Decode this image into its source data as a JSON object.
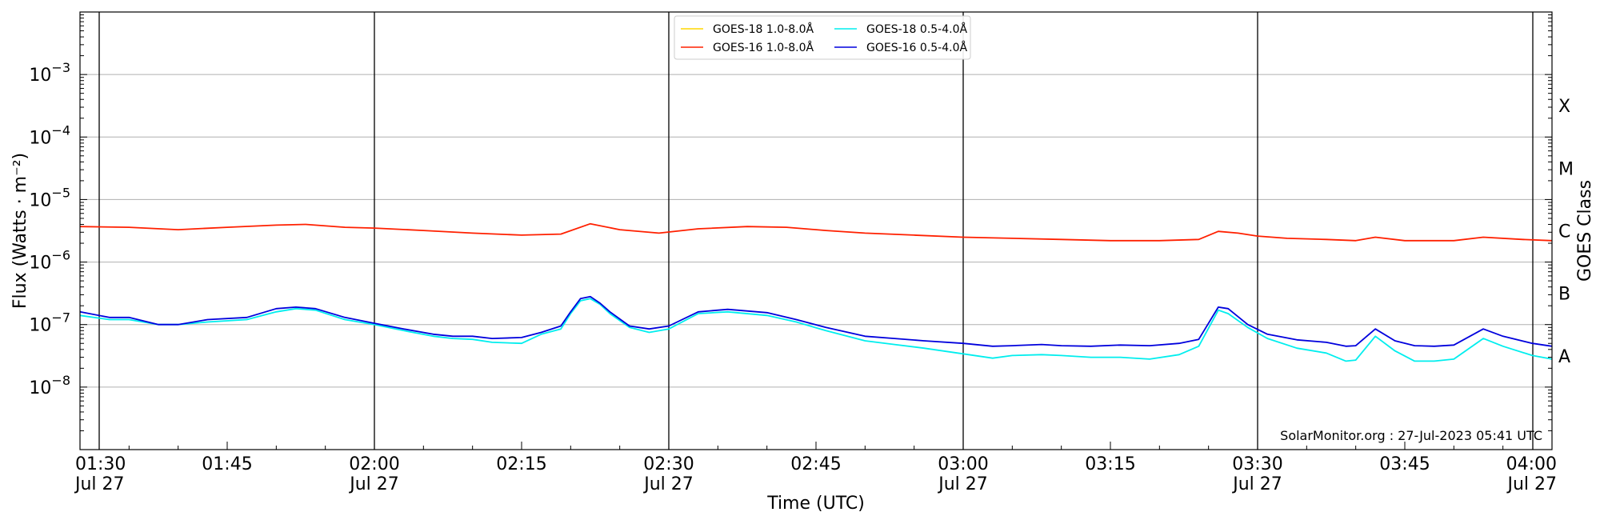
{
  "chart_data": {
    "type": "line",
    "title": "",
    "xlabel": "Time (UTC)",
    "ylabel": "Flux (Watts · m⁻²)",
    "ylabel_right": "GOES Class",
    "yscale": "log",
    "ylim": [
      1e-09,
      0.01
    ],
    "xlim": [
      "01:30",
      "04:00"
    ],
    "grid": "horizontal",
    "legend_location": "top-center",
    "x_tick_labels": [
      {
        "t": "01:30",
        "line1": "01:30",
        "line2": "Jul 27"
      },
      {
        "t": "01:45",
        "line1": "01:45",
        "line2": ""
      },
      {
        "t": "02:00",
        "line1": "02:00",
        "line2": "Jul 27"
      },
      {
        "t": "02:15",
        "line1": "02:15",
        "line2": ""
      },
      {
        "t": "02:30",
        "line1": "02:30",
        "line2": "Jul 27"
      },
      {
        "t": "02:45",
        "line1": "02:45",
        "line2": ""
      },
      {
        "t": "03:00",
        "line1": "03:00",
        "line2": "Jul 27"
      },
      {
        "t": "03:15",
        "line1": "03:15",
        "line2": ""
      },
      {
        "t": "03:30",
        "line1": "03:30",
        "line2": "Jul 27"
      },
      {
        "t": "03:45",
        "line1": "03:45",
        "line2": ""
      },
      {
        "t": "04:00",
        "line1": "04:00",
        "line2": "Jul 27"
      }
    ],
    "y_tick_labels": [
      {
        "value": 0.001,
        "base": "10",
        "exp": "−3"
      },
      {
        "value": 0.0001,
        "base": "10",
        "exp": "−4"
      },
      {
        "value": 1e-05,
        "base": "10",
        "exp": "−5"
      },
      {
        "value": 1e-06,
        "base": "10",
        "exp": "−6"
      },
      {
        "value": 1e-07,
        "base": "10",
        "exp": "−7"
      },
      {
        "value": 1e-08,
        "base": "10",
        "exp": "−8"
      }
    ],
    "vertical_lines": [
      "01:30",
      "02:00",
      "02:30",
      "03:00",
      "03:30",
      "04:00"
    ],
    "goes_classes": [
      {
        "label": "X",
        "value": 0.000316
      },
      {
        "label": "M",
        "value": 3.16e-05
      },
      {
        "label": "C",
        "value": 3.16e-06
      },
      {
        "label": "B",
        "value": 3.16e-07
      },
      {
        "label": "A",
        "value": 3.16e-08
      }
    ],
    "credit": "SolarMonitor.org : 27-Jul-2023 05:41 UTC",
    "series": [
      {
        "name": "GOES-18 1.0-8.0Å",
        "color": "#ffd700",
        "points": []
      },
      {
        "name": "GOES-16 1.0-8.0Å",
        "color": "#ff2000",
        "points": [
          [
            "01:30",
            3.7e-06
          ],
          [
            "01:35",
            3.6e-06
          ],
          [
            "01:40",
            3.3e-06
          ],
          [
            "01:45",
            3.6e-06
          ],
          [
            "01:50",
            3.9e-06
          ],
          [
            "01:53",
            4e-06
          ],
          [
            "01:57",
            3.6e-06
          ],
          [
            "02:00",
            3.5e-06
          ],
          [
            "02:05",
            3.2e-06
          ],
          [
            "02:10",
            2.9e-06
          ],
          [
            "02:15",
            2.7e-06
          ],
          [
            "02:19",
            2.8e-06
          ],
          [
            "02:22",
            4.1e-06
          ],
          [
            "02:25",
            3.3e-06
          ],
          [
            "02:29",
            2.9e-06
          ],
          [
            "02:33",
            3.4e-06
          ],
          [
            "02:38",
            3.7e-06
          ],
          [
            "02:42",
            3.6e-06
          ],
          [
            "02:46",
            3.2e-06
          ],
          [
            "02:50",
            2.9e-06
          ],
          [
            "02:55",
            2.7e-06
          ],
          [
            "03:00",
            2.5e-06
          ],
          [
            "03:05",
            2.4e-06
          ],
          [
            "03:10",
            2.3e-06
          ],
          [
            "03:15",
            2.2e-06
          ],
          [
            "03:20",
            2.2e-06
          ],
          [
            "03:24",
            2.3e-06
          ],
          [
            "03:26",
            3.1e-06
          ],
          [
            "03:28",
            2.9e-06
          ],
          [
            "03:30",
            2.6e-06
          ],
          [
            "03:33",
            2.4e-06
          ],
          [
            "03:37",
            2.3e-06
          ],
          [
            "03:40",
            2.2e-06
          ],
          [
            "03:42",
            2.5e-06
          ],
          [
            "03:45",
            2.2e-06
          ],
          [
            "03:50",
            2.2e-06
          ],
          [
            "03:53",
            2.5e-06
          ],
          [
            "03:57",
            2.3e-06
          ],
          [
            "04:00",
            2.2e-06
          ]
        ]
      },
      {
        "name": "GOES-18 0.5-4.0Å",
        "color": "#00eeee",
        "points": [
          [
            "01:30",
            1.4e-07
          ],
          [
            "01:33",
            1.2e-07
          ],
          [
            "01:35",
            1.2e-07
          ],
          [
            "01:38",
            1e-07
          ],
          [
            "01:40",
            1e-07
          ],
          [
            "01:43",
            1.1e-07
          ],
          [
            "01:47",
            1.2e-07
          ],
          [
            "01:50",
            1.6e-07
          ],
          [
            "01:52",
            1.8e-07
          ],
          [
            "01:54",
            1.7e-07
          ],
          [
            "01:57",
            1.2e-07
          ],
          [
            "02:00",
            1e-07
          ],
          [
            "02:03",
            8e-08
          ],
          [
            "02:06",
            6.5e-08
          ],
          [
            "02:08",
            6e-08
          ],
          [
            "02:10",
            5.8e-08
          ],
          [
            "02:12",
            5.2e-08
          ],
          [
            "02:15",
            5e-08
          ],
          [
            "02:17",
            7e-08
          ],
          [
            "02:19",
            8.5e-08
          ],
          [
            "02:20",
            1.5e-07
          ],
          [
            "02:21",
            2.4e-07
          ],
          [
            "02:22",
            2.6e-07
          ],
          [
            "02:23",
            2.1e-07
          ],
          [
            "02:24",
            1.5e-07
          ],
          [
            "02:26",
            9e-08
          ],
          [
            "02:28",
            7.5e-08
          ],
          [
            "02:30",
            8.5e-08
          ],
          [
            "02:33",
            1.5e-07
          ],
          [
            "02:36",
            1.6e-07
          ],
          [
            "02:40",
            1.4e-07
          ],
          [
            "02:43",
            1.1e-07
          ],
          [
            "02:46",
            8e-08
          ],
          [
            "02:50",
            5.5e-08
          ],
          [
            "02:53",
            4.8e-08
          ],
          [
            "02:56",
            4.2e-08
          ],
          [
            "03:00",
            3.4e-08
          ],
          [
            "03:03",
            2.9e-08
          ],
          [
            "03:05",
            3.2e-08
          ],
          [
            "03:08",
            3.3e-08
          ],
          [
            "03:10",
            3.2e-08
          ],
          [
            "03:13",
            3e-08
          ],
          [
            "03:16",
            3e-08
          ],
          [
            "03:19",
            2.8e-08
          ],
          [
            "03:22",
            3.3e-08
          ],
          [
            "03:24",
            4.5e-08
          ],
          [
            "03:26",
            1.7e-07
          ],
          [
            "03:27",
            1.5e-07
          ],
          [
            "03:29",
            9e-08
          ],
          [
            "03:31",
            6e-08
          ],
          [
            "03:34",
            4.2e-08
          ],
          [
            "03:37",
            3.5e-08
          ],
          [
            "03:39",
            2.6e-08
          ],
          [
            "03:40",
            2.7e-08
          ],
          [
            "03:42",
            6.5e-08
          ],
          [
            "03:44",
            3.8e-08
          ],
          [
            "03:46",
            2.6e-08
          ],
          [
            "03:48",
            2.6e-08
          ],
          [
            "03:50",
            2.8e-08
          ],
          [
            "03:53",
            6e-08
          ],
          [
            "03:55",
            4.5e-08
          ],
          [
            "03:58",
            3.2e-08
          ],
          [
            "04:00",
            2.8e-08
          ]
        ]
      },
      {
        "name": "GOES-16 0.5-4.0Å",
        "color": "#0000dd",
        "points": [
          [
            "01:30",
            1.6e-07
          ],
          [
            "01:33",
            1.3e-07
          ],
          [
            "01:35",
            1.3e-07
          ],
          [
            "01:38",
            1e-07
          ],
          [
            "01:40",
            1e-07
          ],
          [
            "01:43",
            1.2e-07
          ],
          [
            "01:47",
            1.3e-07
          ],
          [
            "01:50",
            1.8e-07
          ],
          [
            "01:52",
            1.9e-07
          ],
          [
            "01:54",
            1.8e-07
          ],
          [
            "01:57",
            1.3e-07
          ],
          [
            "02:00",
            1.05e-07
          ],
          [
            "02:03",
            8.5e-08
          ],
          [
            "02:06",
            7e-08
          ],
          [
            "02:08",
            6.5e-08
          ],
          [
            "02:10",
            6.5e-08
          ],
          [
            "02:12",
            6e-08
          ],
          [
            "02:15",
            6.2e-08
          ],
          [
            "02:17",
            7.5e-08
          ],
          [
            "02:19",
            9.5e-08
          ],
          [
            "02:20",
            1.6e-07
          ],
          [
            "02:21",
            2.6e-07
          ],
          [
            "02:22",
            2.8e-07
          ],
          [
            "02:23",
            2.2e-07
          ],
          [
            "02:24",
            1.6e-07
          ],
          [
            "02:26",
            9.5e-08
          ],
          [
            "02:28",
            8.5e-08
          ],
          [
            "02:30",
            9.5e-08
          ],
          [
            "02:33",
            1.6e-07
          ],
          [
            "02:36",
            1.75e-07
          ],
          [
            "02:40",
            1.55e-07
          ],
          [
            "02:43",
            1.2e-07
          ],
          [
            "02:46",
            9e-08
          ],
          [
            "02:50",
            6.5e-08
          ],
          [
            "02:53",
            6e-08
          ],
          [
            "02:56",
            5.5e-08
          ],
          [
            "03:00",
            5e-08
          ],
          [
            "03:03",
            4.5e-08
          ],
          [
            "03:05",
            4.6e-08
          ],
          [
            "03:08",
            4.8e-08
          ],
          [
            "03:10",
            4.6e-08
          ],
          [
            "03:13",
            4.5e-08
          ],
          [
            "03:16",
            4.7e-08
          ],
          [
            "03:19",
            4.6e-08
          ],
          [
            "03:22",
            5e-08
          ],
          [
            "03:24",
            5.8e-08
          ],
          [
            "03:26",
            1.9e-07
          ],
          [
            "03:27",
            1.8e-07
          ],
          [
            "03:29",
            1e-07
          ],
          [
            "03:31",
            7e-08
          ],
          [
            "03:34",
            5.7e-08
          ],
          [
            "03:37",
            5.2e-08
          ],
          [
            "03:39",
            4.5e-08
          ],
          [
            "03:40",
            4.6e-08
          ],
          [
            "03:42",
            8.5e-08
          ],
          [
            "03:44",
            5.5e-08
          ],
          [
            "03:46",
            4.6e-08
          ],
          [
            "03:48",
            4.5e-08
          ],
          [
            "03:50",
            4.7e-08
          ],
          [
            "03:53",
            8.5e-08
          ],
          [
            "03:55",
            6.5e-08
          ],
          [
            "03:58",
            5e-08
          ],
          [
            "04:00",
            4.5e-08
          ]
        ]
      }
    ]
  }
}
